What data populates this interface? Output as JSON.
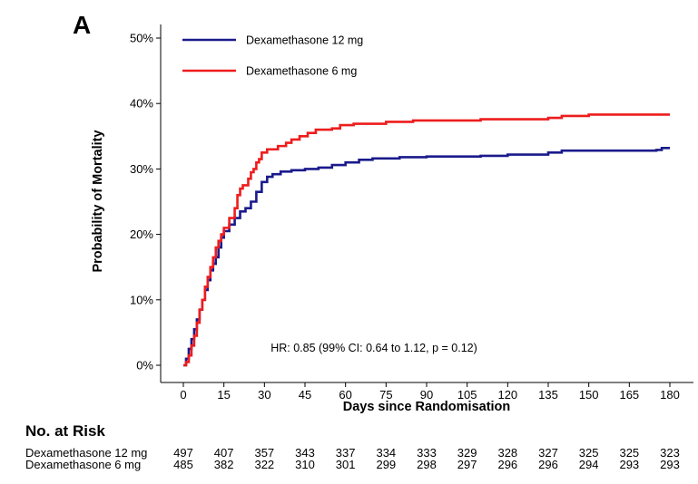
{
  "panel_label": "A",
  "colors": {
    "dex12": "#1a1a8c",
    "dex6": "#ee1c1c"
  },
  "chart_data": {
    "type": "line",
    "step": true,
    "xlabel": "Days since Randomisation",
    "ylabel": "Probability of Mortality",
    "xlim": [
      0,
      180
    ],
    "ylim": [
      0,
      0.5
    ],
    "x_ticks": [
      0,
      15,
      30,
      45,
      60,
      75,
      90,
      105,
      120,
      135,
      150,
      165,
      180
    ],
    "y_ticks": [
      0,
      0.1,
      0.2,
      0.3,
      0.4,
      0.5
    ],
    "y_tick_labels": [
      "0%",
      "10%",
      "20%",
      "30%",
      "40%",
      "50%"
    ],
    "grid": false,
    "legend_position": "top-left",
    "annotation": "HR: 0.85 (99% CI: 0.64 to 1.12, p = 0.12)",
    "series": [
      {
        "name": "Dexamethasone 12 mg",
        "color": "#1a1a8c",
        "points": [
          [
            0,
            0
          ],
          [
            1,
            0.01
          ],
          [
            2,
            0.025
          ],
          [
            3,
            0.04
          ],
          [
            4,
            0.055
          ],
          [
            5,
            0.07
          ],
          [
            6,
            0.085
          ],
          [
            7,
            0.1
          ],
          [
            8,
            0.115
          ],
          [
            9,
            0.13
          ],
          [
            10,
            0.145
          ],
          [
            11,
            0.155
          ],
          [
            12,
            0.165
          ],
          [
            13,
            0.18
          ],
          [
            14,
            0.195
          ],
          [
            15,
            0.205
          ],
          [
            17,
            0.215
          ],
          [
            19,
            0.225
          ],
          [
            21,
            0.235
          ],
          [
            23,
            0.24
          ],
          [
            25,
            0.25
          ],
          [
            27,
            0.265
          ],
          [
            29,
            0.28
          ],
          [
            31,
            0.288
          ],
          [
            33,
            0.292
          ],
          [
            36,
            0.296
          ],
          [
            40,
            0.298
          ],
          [
            45,
            0.3
          ],
          [
            50,
            0.302
          ],
          [
            55,
            0.306
          ],
          [
            60,
            0.31
          ],
          [
            65,
            0.314
          ],
          [
            70,
            0.316
          ],
          [
            80,
            0.318
          ],
          [
            90,
            0.319
          ],
          [
            110,
            0.32
          ],
          [
            120,
            0.322
          ],
          [
            135,
            0.325
          ],
          [
            140,
            0.328
          ],
          [
            175,
            0.329
          ],
          [
            177,
            0.332
          ],
          [
            180,
            0.332
          ]
        ]
      },
      {
        "name": "Dexamethasone 6 mg",
        "color": "#ee1c1c",
        "points": [
          [
            0,
            0
          ],
          [
            1,
            0.005
          ],
          [
            2,
            0.015
          ],
          [
            3,
            0.03
          ],
          [
            4,
            0.045
          ],
          [
            5,
            0.065
          ],
          [
            6,
            0.085
          ],
          [
            7,
            0.1
          ],
          [
            8,
            0.12
          ],
          [
            9,
            0.135
          ],
          [
            10,
            0.15
          ],
          [
            11,
            0.165
          ],
          [
            12,
            0.18
          ],
          [
            13,
            0.19
          ],
          [
            14,
            0.2
          ],
          [
            15,
            0.21
          ],
          [
            17,
            0.225
          ],
          [
            19,
            0.24
          ],
          [
            20,
            0.26
          ],
          [
            21,
            0.27
          ],
          [
            22,
            0.275
          ],
          [
            24,
            0.285
          ],
          [
            25,
            0.295
          ],
          [
            26,
            0.3
          ],
          [
            27,
            0.31
          ],
          [
            28,
            0.315
          ],
          [
            29,
            0.325
          ],
          [
            31,
            0.33
          ],
          [
            35,
            0.335
          ],
          [
            38,
            0.34
          ],
          [
            40,
            0.345
          ],
          [
            43,
            0.35
          ],
          [
            46,
            0.355
          ],
          [
            49,
            0.36
          ],
          [
            55,
            0.362
          ],
          [
            58,
            0.367
          ],
          [
            63,
            0.369
          ],
          [
            75,
            0.372
          ],
          [
            85,
            0.374
          ],
          [
            110,
            0.376
          ],
          [
            135,
            0.378
          ],
          [
            140,
            0.381
          ],
          [
            150,
            0.383
          ],
          [
            180,
            0.383
          ]
        ]
      }
    ]
  },
  "risk_table": {
    "title": "No. at Risk",
    "times": [
      0,
      15,
      30,
      45,
      60,
      75,
      90,
      105,
      120,
      135,
      150,
      165,
      180
    ],
    "rows": [
      {
        "label": "Dexamethasone 12 mg",
        "values": [
          497,
          407,
          357,
          343,
          337,
          334,
          333,
          329,
          328,
          327,
          325,
          325,
          323
        ]
      },
      {
        "label": "Dexamethasone 6 mg",
        "values": [
          485,
          382,
          322,
          310,
          301,
          299,
          298,
          297,
          296,
          296,
          294,
          293,
          293
        ]
      }
    ]
  }
}
